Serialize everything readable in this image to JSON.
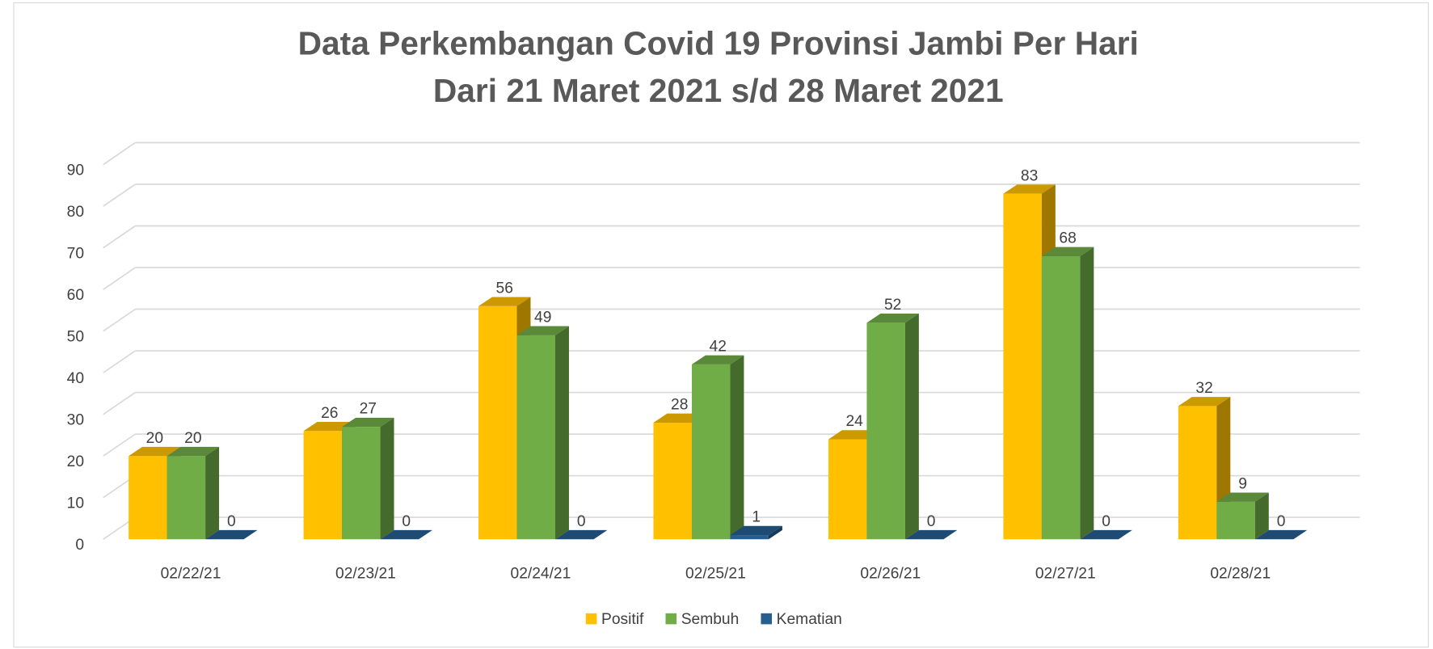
{
  "chart_data": {
    "type": "bar3d",
    "title": "Data Perkembangan Covid 19 Provinsi Jambi Per Hari",
    "subtitle": "Dari 21 Maret 2021 s/d 28 Maret 2021",
    "categories": [
      "02/22/21",
      "02/23/21",
      "02/24/21",
      "02/25/21",
      "02/26/21",
      "02/27/21",
      "02/28/21"
    ],
    "series": [
      {
        "name": "Positif",
        "color": "#ffc000",
        "values": [
          20,
          26,
          56,
          28,
          24,
          83,
          32
        ]
      },
      {
        "name": "Sembuh",
        "color": "#70ad47",
        "values": [
          20,
          27,
          49,
          42,
          52,
          68,
          9
        ]
      },
      {
        "name": "Kematian",
        "color": "#255e91",
        "values": [
          0,
          0,
          0,
          1,
          0,
          0,
          0
        ]
      }
    ],
    "ylim": [
      0,
      90
    ],
    "yticks": [
      0,
      10,
      20,
      30,
      40,
      50,
      60,
      70,
      80,
      90
    ],
    "grid": true,
    "legend": "bottom"
  }
}
